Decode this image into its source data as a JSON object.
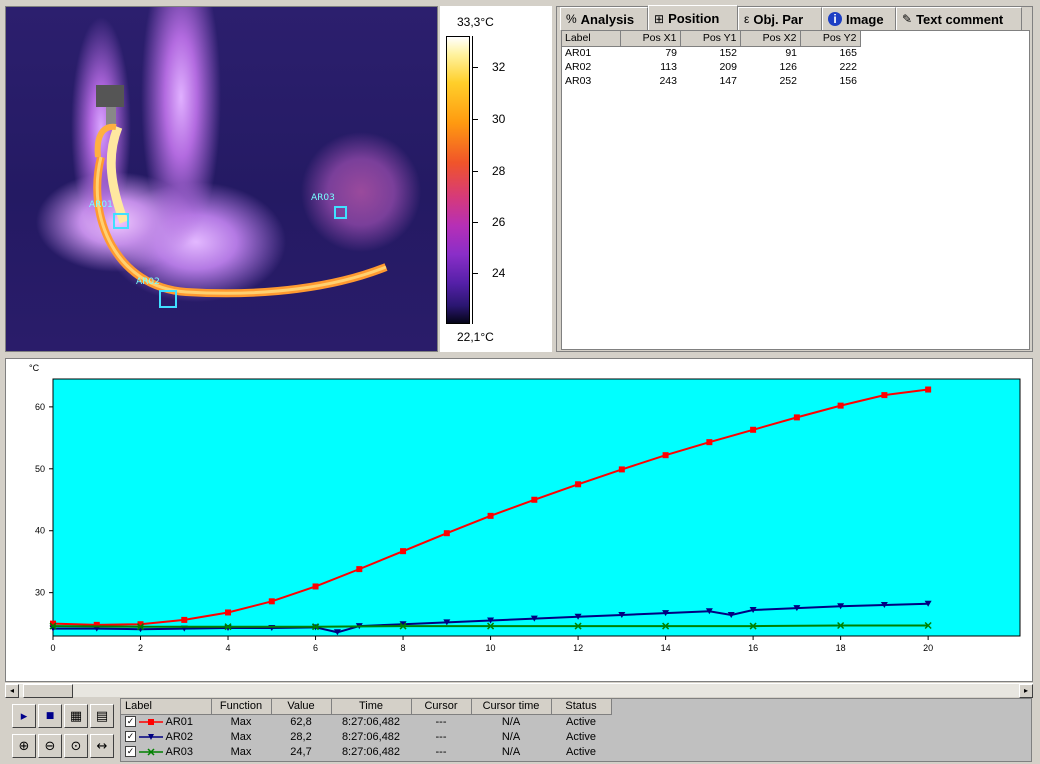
{
  "thermal_image": {
    "regions": [
      {
        "label": "AR01"
      },
      {
        "label": "AR02"
      },
      {
        "label": "AR03"
      }
    ]
  },
  "color_scale": {
    "max_label": "33,3°C",
    "min_label": "22,1°C",
    "ticks": [
      "32",
      "30",
      "28",
      "26",
      "24"
    ]
  },
  "tabs": [
    {
      "label": "Analysis",
      "icon": "analysis-icon",
      "glyph": "%"
    },
    {
      "label": "Position",
      "icon": "position-icon",
      "glyph": "⊞"
    },
    {
      "label": "Obj. Par",
      "icon": "object-parameters-icon",
      "glyph": "ε"
    },
    {
      "label": "Image",
      "icon": "info-icon",
      "glyph": "i"
    },
    {
      "label": "Text comment",
      "icon": "text-comment-icon",
      "glyph": "✎"
    }
  ],
  "position_table": {
    "headers": [
      "Label",
      "Pos X1",
      "Pos Y1",
      "Pos X2",
      "Pos Y2"
    ],
    "rows": [
      [
        "AR01",
        "79",
        "152",
        "91",
        "165"
      ],
      [
        "AR02",
        "113",
        "209",
        "126",
        "222"
      ],
      [
        "AR03",
        "243",
        "147",
        "252",
        "156"
      ]
    ]
  },
  "chart_data": {
    "type": "line",
    "ylabel": "°C",
    "xlim": [
      0,
      20
    ],
    "ylim": [
      23,
      64.5
    ],
    "x_ticks": [
      0,
      2,
      4,
      6,
      8,
      10,
      12,
      14,
      16,
      18,
      20
    ],
    "y_ticks": [
      30,
      40,
      50,
      60
    ],
    "background": "#00ffff",
    "series": [
      {
        "name": "AR01",
        "color": "#ff0000",
        "marker": "square",
        "x": [
          0,
          1,
          2,
          3,
          4,
          5,
          6,
          7,
          8,
          9,
          10,
          11,
          12,
          13,
          14,
          15,
          16,
          17,
          18,
          19,
          20
        ],
        "y": [
          25.0,
          24.8,
          24.9,
          25.6,
          26.8,
          28.6,
          31.0,
          33.8,
          36.7,
          39.6,
          42.4,
          45.0,
          47.5,
          49.9,
          52.2,
          54.3,
          56.3,
          58.3,
          60.2,
          61.9,
          62.8
        ]
      },
      {
        "name": "AR02",
        "color": "#000080",
        "marker": "triangle-down",
        "x": [
          0,
          1,
          2,
          3,
          4,
          5,
          6,
          6.5,
          7,
          8,
          9,
          10,
          11,
          12,
          13,
          14,
          15,
          15.5,
          16,
          17,
          18,
          19,
          20
        ],
        "y": [
          24.2,
          24.2,
          24.1,
          24.2,
          24.3,
          24.3,
          24.4,
          23.6,
          24.6,
          24.9,
          25.2,
          25.5,
          25.8,
          26.1,
          26.4,
          26.7,
          27.0,
          26.4,
          27.2,
          27.5,
          27.8,
          28.0,
          28.2
        ]
      },
      {
        "name": "AR03",
        "color": "#008000",
        "marker": "x",
        "x": [
          0,
          2,
          4,
          6,
          8,
          10,
          12,
          14,
          16,
          18,
          20
        ],
        "y": [
          24.6,
          24.5,
          24.5,
          24.5,
          24.6,
          24.6,
          24.6,
          24.6,
          24.6,
          24.7,
          24.7
        ]
      }
    ]
  },
  "legend_table": {
    "headers": [
      "Label",
      "Function",
      "Value",
      "Time",
      "Cursor",
      "Cursor time",
      "Status"
    ],
    "rows": [
      {
        "label": "AR01",
        "function": "Max",
        "value": "62,8",
        "time": "8:27:06,482",
        "cursor": "---",
        "cursor_time": "N/A",
        "status": "Active",
        "color": "#ff0000"
      },
      {
        "label": "AR02",
        "function": "Max",
        "value": "28,2",
        "time": "8:27:06,482",
        "cursor": "---",
        "cursor_time": "N/A",
        "status": "Active",
        "color": "#000080"
      },
      {
        "label": "AR03",
        "function": "Max",
        "value": "24,7",
        "time": "8:27:06,482",
        "cursor": "---",
        "cursor_time": "N/A",
        "status": "Active",
        "color": "#008000"
      }
    ]
  },
  "toolbar": {
    "buttons": [
      {
        "icon": "play-icon",
        "glyph": "▸"
      },
      {
        "icon": "stop-icon",
        "glyph": "■"
      },
      {
        "icon": "chart-settings-icon",
        "glyph": "▦"
      },
      {
        "icon": "chart-properties-icon",
        "glyph": "▤"
      },
      {
        "icon": "zoom-in-icon",
        "glyph": "⊕"
      },
      {
        "icon": "zoom-out-icon",
        "glyph": "⊖"
      },
      {
        "icon": "zoom-fit-icon",
        "glyph": "⊙"
      },
      {
        "icon": "fit-width-icon",
        "glyph": "↔"
      }
    ]
  },
  "scrollbar": {
    "left_glyph": "◂",
    "right_glyph": "▸"
  }
}
